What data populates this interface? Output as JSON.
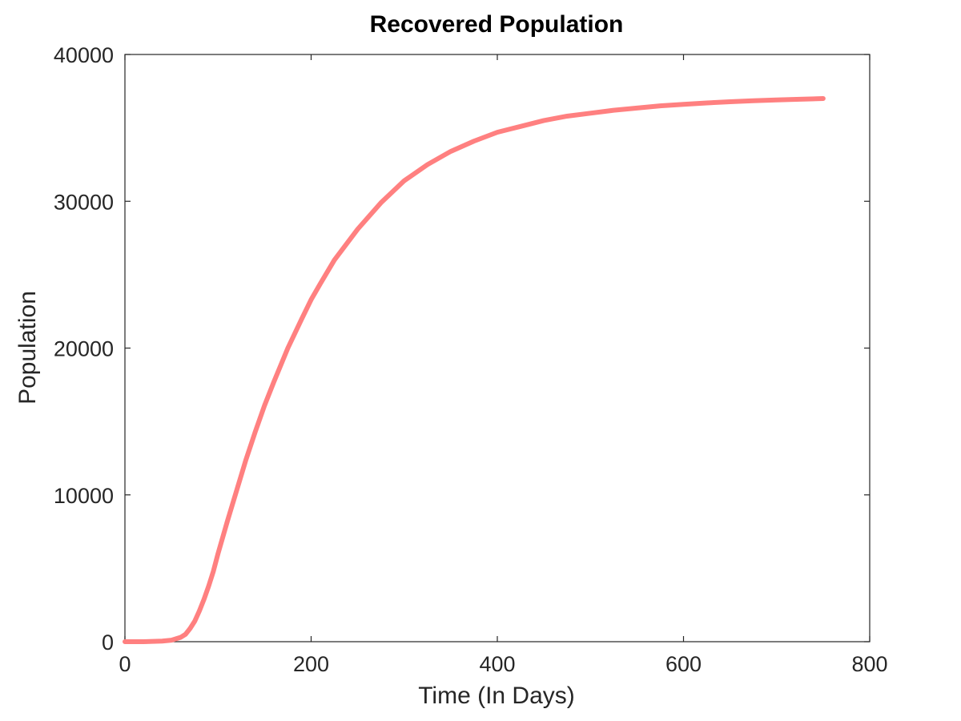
{
  "chart_data": {
    "type": "line",
    "title": "Recovered Population",
    "xlabel": "Time (In Days)",
    "ylabel": "Population",
    "xlim": [
      0,
      800
    ],
    "ylim": [
      0,
      40000
    ],
    "xticks": [
      0,
      200,
      400,
      600,
      800
    ],
    "yticks": [
      0,
      10000,
      20000,
      30000,
      40000
    ],
    "xtick_labels": [
      "0",
      "200",
      "400",
      "600",
      "800"
    ],
    "ytick_labels": [
      "0",
      "10000",
      "20000",
      "30000",
      "40000"
    ],
    "grid": false,
    "legend": "none",
    "series": [
      {
        "color": "#ff8080",
        "x": [
          0,
          20,
          40,
          50,
          60,
          65,
          70,
          75,
          80,
          85,
          90,
          95,
          100,
          110,
          120,
          130,
          140,
          150,
          160,
          175,
          190,
          200,
          210,
          225,
          250,
          275,
          300,
          325,
          350,
          375,
          400,
          425,
          450,
          475,
          500,
          525,
          550,
          575,
          600,
          625,
          650,
          675,
          700,
          725,
          750
        ],
        "y": [
          0,
          0,
          40,
          100,
          300,
          500,
          900,
          1400,
          2100,
          2900,
          3800,
          4800,
          6000,
          8200,
          10300,
          12400,
          14300,
          16100,
          17700,
          20000,
          22000,
          23300,
          24400,
          26000,
          28100,
          29900,
          31400,
          32500,
          33400,
          34100,
          34700,
          35100,
          35500,
          35800,
          36000,
          36200,
          36350,
          36500,
          36600,
          36700,
          36780,
          36850,
          36900,
          36950,
          37000
        ]
      }
    ]
  }
}
